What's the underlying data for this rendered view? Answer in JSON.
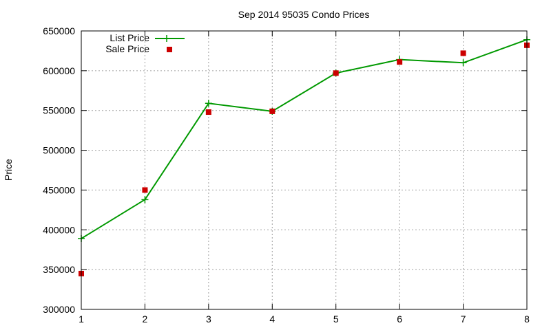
{
  "chart_data": {
    "type": "line",
    "title": "Sep 2014 95035 Condo Prices",
    "xlabel": "",
    "ylabel": "Price",
    "x": [
      1,
      2,
      3,
      4,
      5,
      6,
      7,
      8
    ],
    "xlim": [
      1,
      8
    ],
    "ylim": [
      300000,
      650000
    ],
    "xticks": [
      "1",
      "2",
      "3",
      "4",
      "5",
      "6",
      "7",
      "8"
    ],
    "yticks": [
      "300000",
      "350000",
      "400000",
      "450000",
      "500000",
      "550000",
      "600000",
      "650000"
    ],
    "grid": true,
    "legend_position": "top-left",
    "series": [
      {
        "name": "List Price",
        "style": "line-with-plus-markers",
        "color": "#009900",
        "values": [
          389000,
          438000,
          559000,
          549000,
          597000,
          614000,
          610000,
          639000
        ]
      },
      {
        "name": "Sale Price",
        "style": "square-points",
        "color": "#cc0000",
        "values": [
          345000,
          450000,
          548000,
          549000,
          597000,
          611000,
          622000,
          632000
        ]
      }
    ]
  }
}
